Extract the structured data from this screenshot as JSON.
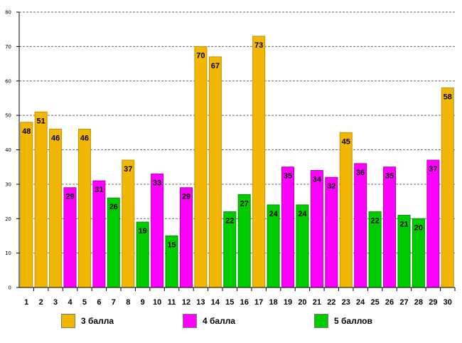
{
  "chart_data": {
    "type": "bar",
    "title": "",
    "xlabel": "",
    "ylabel": "",
    "ylim": [
      0,
      80
    ],
    "yticks": [
      "0",
      "10",
      "20",
      "30",
      "40",
      "50",
      "60",
      "70",
      "80"
    ],
    "grid": true,
    "legend_position": "bottom",
    "categories": [
      "1",
      "2",
      "3",
      "4",
      "5",
      "6",
      "7",
      "8",
      "9",
      "10",
      "11",
      "12",
      "13",
      "14",
      "15",
      "16",
      "17",
      "18",
      "19",
      "20",
      "21",
      "22",
      "23",
      "24",
      "25",
      "26",
      "27",
      "28",
      "29",
      "30"
    ],
    "values": [
      48,
      51,
      46,
      29,
      46,
      31,
      26,
      37,
      19,
      33,
      15,
      29,
      70,
      67,
      22,
      27,
      73,
      24,
      35,
      24,
      34,
      32,
      45,
      36,
      22,
      35,
      21,
      20,
      37,
      58
    ],
    "groups": [
      0,
      0,
      0,
      1,
      0,
      1,
      2,
      0,
      2,
      1,
      2,
      1,
      0,
      0,
      2,
      2,
      0,
      2,
      1,
      2,
      1,
      1,
      0,
      1,
      2,
      1,
      2,
      2,
      1,
      0
    ],
    "series": [
      {
        "name": "3 балла",
        "color": "#f2b705",
        "edge": "#c49300"
      },
      {
        "name": "4 балла",
        "color": "#ff00ff",
        "edge": "#b800b8"
      },
      {
        "name": "5 баллов",
        "color": "#00cc00",
        "edge": "#009400"
      }
    ]
  }
}
